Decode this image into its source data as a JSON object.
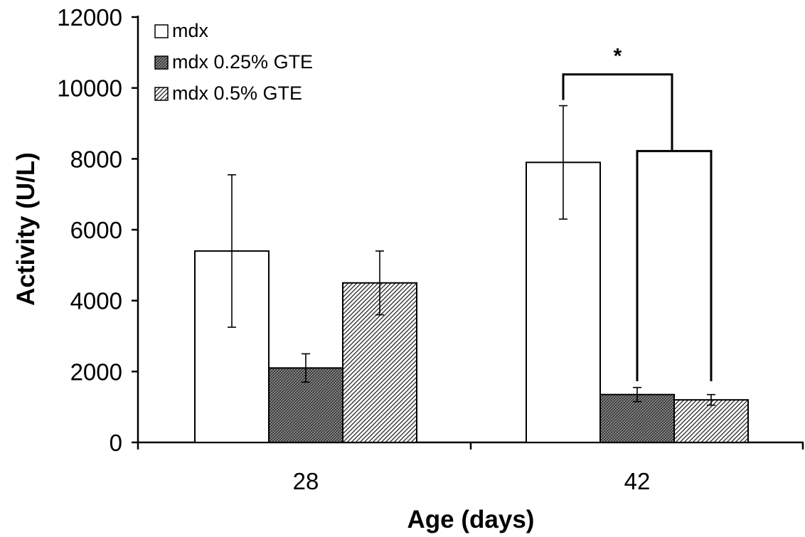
{
  "chart_data": {
    "type": "bar",
    "title": "",
    "xlabel": "Age (days)",
    "ylabel": "Activity (U/L)",
    "categories": [
      "28",
      "42"
    ],
    "ylim": [
      0,
      12000
    ],
    "yticks": [
      "0",
      "2000",
      "4000",
      "6000",
      "8000",
      "10000",
      "12000"
    ],
    "series": [
      {
        "name": "mdx",
        "pattern": "open",
        "values": [
          5400,
          7900
        ],
        "error": [
          2150,
          1600
        ]
      },
      {
        "name": "mdx 0.25% GTE",
        "pattern": "crosshatch",
        "values": [
          2100,
          1350
        ],
        "error": [
          400,
          200
        ]
      },
      {
        "name": "mdx 0.5% GTE",
        "pattern": "diagonal",
        "values": [
          4500,
          1200
        ],
        "error": [
          900,
          150
        ]
      }
    ],
    "legend_position": "top-left",
    "grid": false,
    "annotations": [
      {
        "text": "*",
        "category": "42",
        "compares": "mdx vs mdx 0.25% GTE and mdx 0.5% GTE"
      }
    ],
    "colors": {
      "bar_edge": "#000000",
      "open_fill": "#ffffff",
      "pattern_ink": "#1a1a1a"
    }
  }
}
